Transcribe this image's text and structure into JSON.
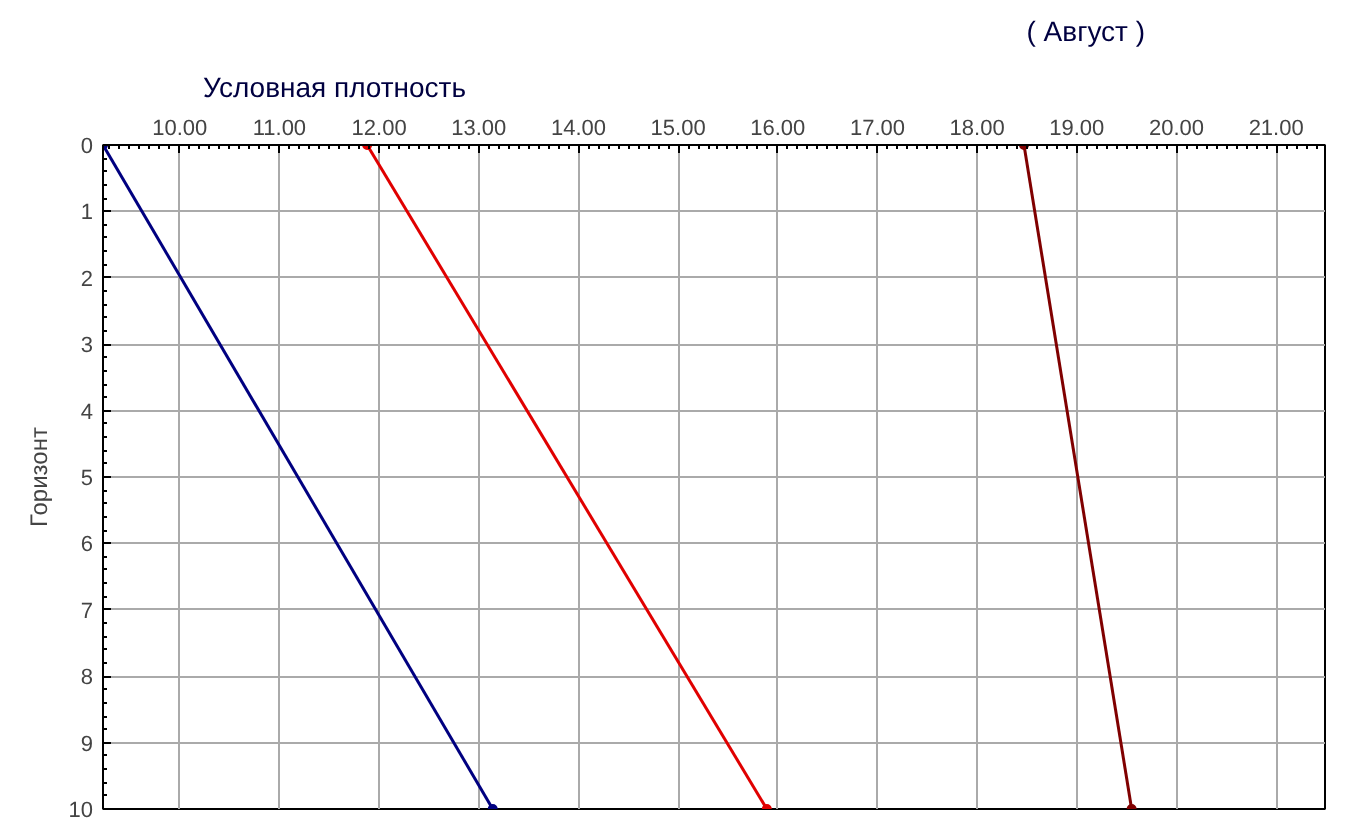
{
  "chart_data": {
    "type": "line",
    "title": "Условная плотность",
    "subtitle": "( Август )",
    "ylabel": "Горизонт",
    "xlim": [
      9.23,
      21.49
    ],
    "xticks": [
      {
        "value": 10,
        "label": "10.00"
      },
      {
        "value": 11,
        "label": "11.00"
      },
      {
        "value": 12,
        "label": "12.00"
      },
      {
        "value": 13,
        "label": "13.00"
      },
      {
        "value": 14,
        "label": "14.00"
      },
      {
        "value": 15,
        "label": "15.00"
      },
      {
        "value": 16,
        "label": "16.00"
      },
      {
        "value": 17,
        "label": "17.00"
      },
      {
        "value": 18,
        "label": "18.00"
      },
      {
        "value": 19,
        "label": "19.00"
      },
      {
        "value": 20,
        "label": "20.00"
      },
      {
        "value": 21,
        "label": "21.00"
      }
    ],
    "ylim": [
      10,
      0
    ],
    "yticks": [
      0,
      1,
      2,
      3,
      4,
      5,
      6,
      7,
      8,
      9,
      10
    ],
    "grid": true,
    "marker": "circle",
    "line_style": "solid",
    "series": [
      {
        "color": "#000080",
        "x": [
          9.23,
          13.14
        ],
        "values": [
          0,
          10
        ]
      },
      {
        "color": "#e00000",
        "x": [
          11.88,
          15.89
        ],
        "values": [
          0,
          10
        ]
      },
      {
        "color": "#800000",
        "x": [
          18.47,
          19.55
        ],
        "values": [
          0,
          10
        ]
      }
    ]
  }
}
